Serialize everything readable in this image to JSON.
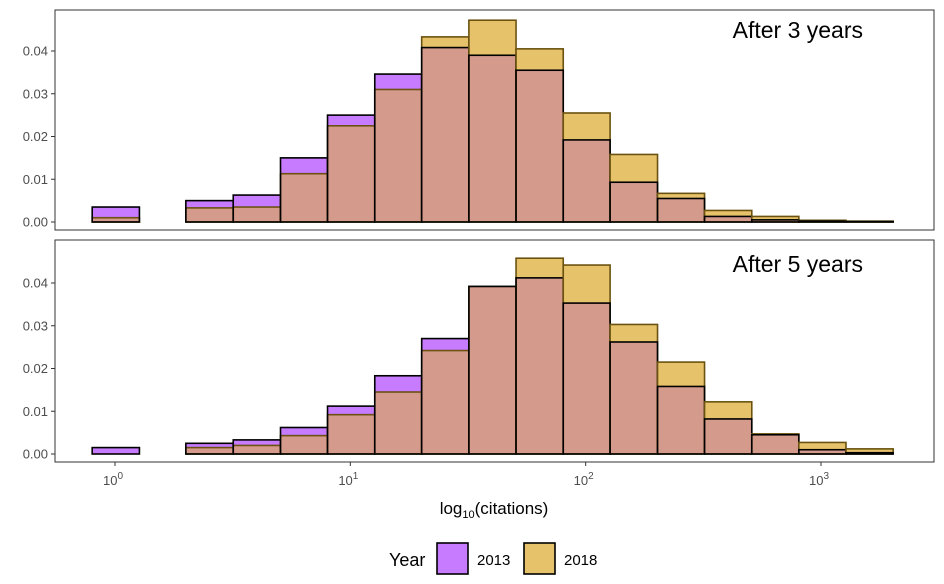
{
  "chart_data": {
    "type": "histogram",
    "xlabel_base": "log",
    "xlabel_sub": "10",
    "xlabel_rest": "(citations)",
    "x_scale": "log10",
    "x_ticks": [
      {
        "value": 1,
        "base": "10",
        "exp": "0"
      },
      {
        "value": 10,
        "base": "10",
        "exp": "1"
      },
      {
        "value": 100,
        "base": "10",
        "exp": "2"
      },
      {
        "value": 1000,
        "base": "10",
        "exp": "3"
      }
    ],
    "bin_edges": [
      0.8,
      1.27,
      2.0,
      3.18,
      5.05,
      8.0,
      12.7,
      20.1,
      31.9,
      50.6,
      80.3,
      127,
      202,
      320,
      508,
      805,
      1277,
      2026
    ],
    "legend": {
      "title": "Year",
      "items": [
        {
          "label": "2013",
          "color": "#c77cff"
        },
        {
          "label": "2018",
          "color": "#e6c36b"
        }
      ]
    },
    "colors": {
      "overlap": "#d49a8c",
      "series_2013": "#c77cff",
      "series_2018": "#e6c36b"
    },
    "panels": [
      {
        "title": "After 3 years",
        "ylim": [
          0,
          0.0475
        ],
        "y_ticks": [
          "0.00",
          "0.01",
          "0.02",
          "0.03",
          "0.04"
        ],
        "y_tick_values": [
          0,
          0.01,
          0.02,
          0.03,
          0.04
        ],
        "series": [
          {
            "name": "2013",
            "values": [
              0.0035,
              0,
              0.005,
              0.0063,
              0.015,
              0.025,
              0.0346,
              0.0408,
              0.039,
              0.0355,
              0.0192,
              0.0093,
              0.0055,
              0.0013,
              0.0005,
              0.0002,
              0.0001,
              0.0001
            ]
          },
          {
            "name": "2018",
            "values": [
              0.001,
              0,
              0.0033,
              0.0035,
              0.0113,
              0.0225,
              0.031,
              0.0433,
              0.0472,
              0.0405,
              0.0255,
              0.0158,
              0.0067,
              0.0027,
              0.0013,
              0.0004,
              0.0002,
              0.0001
            ]
          }
        ]
      },
      {
        "title": "After 5 years",
        "ylim": [
          0,
          0.0475
        ],
        "y_ticks": [
          "0.00",
          "0.01",
          "0.02",
          "0.03",
          "0.04"
        ],
        "y_tick_values": [
          0,
          0.01,
          0.02,
          0.03,
          0.04
        ],
        "series": [
          {
            "name": "2013",
            "values": [
              0.0015,
              0,
              0.0025,
              0.0033,
              0.0062,
              0.0112,
              0.0183,
              0.027,
              0.0392,
              0.0412,
              0.0353,
              0.0262,
              0.0158,
              0.0082,
              0.0045,
              0.001,
              0.0003,
              0.0001
            ]
          },
          {
            "name": "2018",
            "values": [
              0,
              0,
              0.0015,
              0.002,
              0.0043,
              0.0092,
              0.0145,
              0.0242,
              0.0392,
              0.0458,
              0.0442,
              0.0303,
              0.0215,
              0.0122,
              0.0047,
              0.0027,
              0.0012,
              0.0002
            ]
          }
        ]
      }
    ]
  }
}
